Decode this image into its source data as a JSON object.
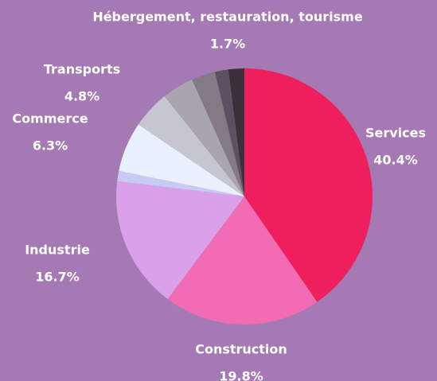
{
  "chart_data": {
    "type": "pie",
    "categories": [
      "Services",
      "Construction",
      "Industrie",
      null,
      "Commerce",
      "Transports",
      null,
      null,
      "Hébergement, restauration, tourisme",
      null
    ],
    "values": [
      40.4,
      19.8,
      16.7,
      1.3,
      6.3,
      4.8,
      4.0,
      3.0,
      1.7,
      2.0
    ],
    "value_labels": [
      "40.4%",
      "19.8%",
      "16.7%",
      null,
      "6.3%",
      "4.8%",
      null,
      null,
      "1.7%",
      null
    ],
    "colors": [
      "#ef1f5e",
      "#f16bb5",
      "#dba0ea",
      "#c9c9f5",
      "#eaf1fe",
      "#c6c6d0",
      "#a9a4ad",
      "#837a86",
      "#5c5160",
      "#3b2f39"
    ]
  }
}
